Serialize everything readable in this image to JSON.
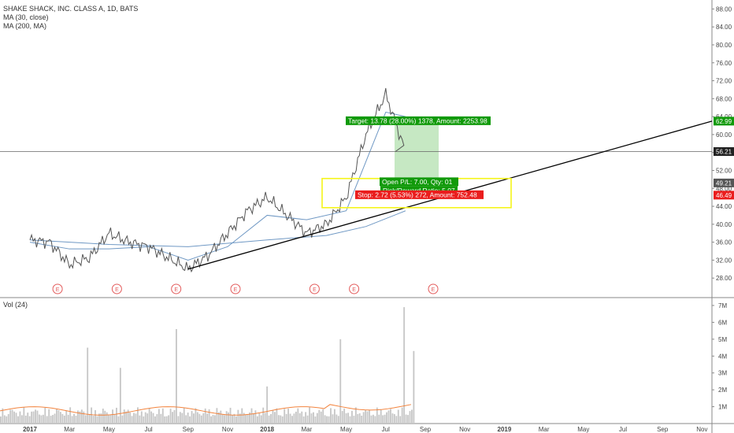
{
  "header": {
    "symbol_title": "SHAKE SHACK, INC. CLASS A, 1D, BATS",
    "indicators": [
      "MA (30, close)",
      "MA (200, MA)"
    ],
    "volume_label": "Vol (24)"
  },
  "colors": {
    "price": "#555555",
    "ma30": "#6f98c4",
    "ma200": "#6f98c4",
    "vol_bar": "#c7c7c7",
    "vol_ma": "#f3843e",
    "trendline": "#000000",
    "target_zone": "#b8e2b4",
    "target_label": "#119a0a",
    "stop_label": "#ea1d1d",
    "highlight_box": "#f5f519",
    "earnings_marker": "#e35b5b"
  },
  "chart_data": [
    {
      "type": "line",
      "title": "SHAKE SHACK, INC. CLASS A, 1D, BATS",
      "ylim": [
        24,
        90
      ],
      "y_ticks": [
        28.0,
        32.0,
        36.0,
        40.0,
        44.0,
        48.0,
        52.0,
        56.0,
        60.0,
        64.0,
        68.0,
        72.0,
        76.0,
        80.0,
        84.0,
        88.0
      ],
      "x_labels": [
        "2017",
        "Mar",
        "May",
        "Jul",
        "Sep",
        "Nov",
        "2018",
        "Mar",
        "May",
        "Jul",
        "Sep",
        "Nov",
        "2019",
        "Mar",
        "May",
        "Jul",
        "Sep",
        "Nov"
      ],
      "series": [
        {
          "name": "price",
          "x": [
            "2017-01",
            "2017-02",
            "2017-03",
            "2017-04",
            "2017-05",
            "2017-06",
            "2017-07",
            "2017-08",
            "2017-09",
            "2017-10",
            "2017-11",
            "2017-12",
            "2018-01",
            "2018-02",
            "2018-03",
            "2018-04",
            "2018-05",
            "2018-06",
            "2018-07",
            "2018-08"
          ],
          "values": [
            36.5,
            36.0,
            31.0,
            32.5,
            38.0,
            36.0,
            35.0,
            32.5,
            30.0,
            33.0,
            38.0,
            43.0,
            46.0,
            42.0,
            38.0,
            40.0,
            46.0,
            60.0,
            69.0,
            56.2
          ]
        },
        {
          "name": "MA (30, close)",
          "x": [
            "2017-01",
            "2017-03",
            "2017-05",
            "2017-07",
            "2017-09",
            "2017-11",
            "2018-01",
            "2018-03",
            "2018-05",
            "2018-06",
            "2018-07",
            "2018-08"
          ],
          "values": [
            36.0,
            34.5,
            34.5,
            35.0,
            32.0,
            35.0,
            42.0,
            41.0,
            43.0,
            54.0,
            65.0,
            64.0
          ]
        },
        {
          "name": "MA (200, MA)",
          "x": [
            "2017-01",
            "2017-05",
            "2017-09",
            "2018-01",
            "2018-04",
            "2018-06",
            "2018-08"
          ],
          "values": [
            36.5,
            35.5,
            35.0,
            36.5,
            37.5,
            39.5,
            43.0
          ]
        }
      ],
      "price_labels": [
        "62.99",
        "56.21",
        "49.21",
        "46.49"
      ],
      "current_price": 56.21,
      "trendline": {
        "from": [
          "2017-09",
          30.0
        ],
        "to": [
          "2019-11",
          62.99
        ]
      },
      "position": {
        "target_text": "Target: 13.78 (28.00%) 1378, Amount: 2253.98",
        "open_text": "Open P/L: 7.00, Qty: 01",
        "rr_text": "Risk/Reward Ratio: 5.07",
        "stop_text": "Stop: 2.72 (5.53%) 272, Amount: 752.48",
        "entry": 49.21,
        "target": 62.99,
        "stop": 46.49
      },
      "earnings_markers": [
        "2017-02",
        "2017-05",
        "2017-08",
        "2017-11",
        "2018-03",
        "2018-05",
        "2018-09"
      ],
      "earnings_label": "E"
    },
    {
      "type": "bar",
      "title": "Vol (24)",
      "ylim": [
        0,
        7
      ],
      "y_ticks": [
        "1M",
        "2M",
        "3M",
        "4M",
        "5M",
        "6M",
        "7M"
      ],
      "volume_spikes_millions": [
        4.5,
        3.3,
        5.6,
        2.2,
        5.0,
        6.9,
        4.3
      ],
      "baseline_millions": 0.7
    }
  ]
}
